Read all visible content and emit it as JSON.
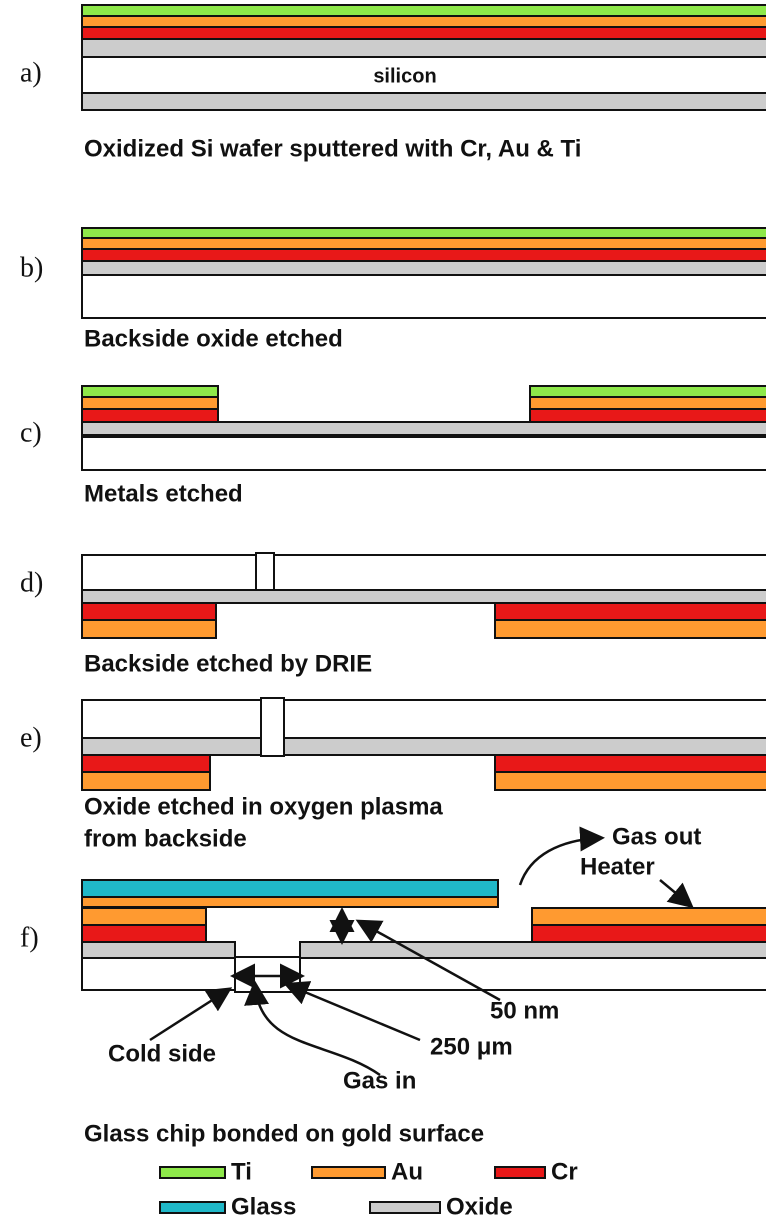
{
  "panels": [
    {
      "label": "a)",
      "caption": [
        "Oxidized Si wafer sputtered with Cr, Au & Ti"
      ]
    },
    {
      "label": "b)",
      "caption": [
        "Backside oxide etched"
      ]
    },
    {
      "label": "c)",
      "caption": [
        "Metals etched"
      ]
    },
    {
      "label": "d)",
      "caption": [
        "Backside etched by DRIE"
      ]
    },
    {
      "label": "e)",
      "caption": [
        "Oxide etched in oxygen plasma",
        "from backside"
      ]
    },
    {
      "label": "f)",
      "caption": [
        "Glass chip bonded on gold surface"
      ]
    }
  ],
  "annotations": {
    "silicon": "silicon",
    "gas_out": "Gas out",
    "heater": "Heater",
    "gap": "50 nm",
    "hole": "250 μm",
    "cold_side": "Cold side",
    "gas_in": "Gas in"
  },
  "legend": [
    {
      "label": "Ti",
      "color": "#8ee84a"
    },
    {
      "label": "Au",
      "color": "#ff9a30"
    },
    {
      "label": "Cr",
      "color": "#e81818"
    },
    {
      "label": "Glass",
      "color": "#20b8c8"
    },
    {
      "label": "Oxide",
      "color": "#cccccc"
    }
  ]
}
